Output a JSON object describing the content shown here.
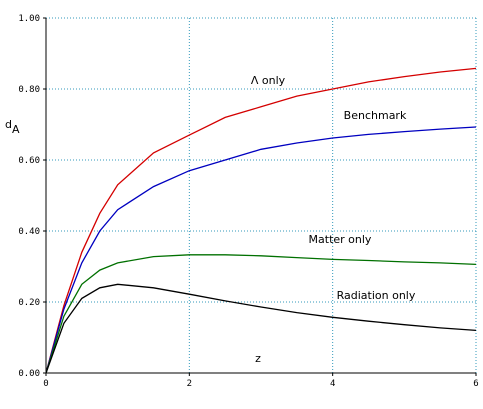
{
  "chart_data": {
    "type": "line",
    "y_label": "d",
    "y_label_subscript": "A",
    "x_label": "z",
    "x": [
      0,
      0.25,
      0.5,
      0.75,
      1,
      1.5,
      2,
      2.5,
      3,
      3.5,
      4,
      4.5,
      5,
      5.5,
      6
    ],
    "series": [
      {
        "name": "Λ only",
        "color": "#d40000",
        "values": [
          0,
          0.19,
          0.34,
          0.45,
          0.53,
          0.62,
          0.67,
          0.72,
          0.75,
          0.78,
          0.8,
          0.82,
          0.835,
          0.848,
          0.858
        ]
      },
      {
        "name": "Benchmark",
        "color": "#0000c0",
        "values": [
          0,
          0.18,
          0.31,
          0.4,
          0.46,
          0.525,
          0.57,
          0.6,
          0.63,
          0.648,
          0.662,
          0.672,
          0.68,
          0.687,
          0.693
        ]
      },
      {
        "name": "Matter only",
        "color": "#007000",
        "values": [
          0,
          0.16,
          0.25,
          0.29,
          0.31,
          0.328,
          0.333,
          0.333,
          0.33,
          0.325,
          0.32,
          0.317,
          0.313,
          0.31,
          0.306
        ]
      },
      {
        "name": "Radiation only",
        "color": "#000000",
        "values": [
          0,
          0.14,
          0.21,
          0.24,
          0.25,
          0.24,
          0.222,
          0.203,
          0.186,
          0.17,
          0.157,
          0.146,
          0.136,
          0.127,
          0.12
        ]
      }
    ],
    "xlim": [
      0,
      6
    ],
    "ylim": [
      0,
      1
    ],
    "xticks": [
      0,
      2,
      4,
      6
    ],
    "yticks": [
      {
        "value": 0,
        "label": "0.00"
      },
      {
        "value": 0.2,
        "label": "0.20"
      },
      {
        "value": 0.4,
        "label": "0.40"
      },
      {
        "value": 0.6,
        "label": "0.60"
      },
      {
        "value": 0.8,
        "label": "0.80"
      },
      {
        "value": 1,
        "label": "1.00"
      }
    ],
    "grid": true
  }
}
